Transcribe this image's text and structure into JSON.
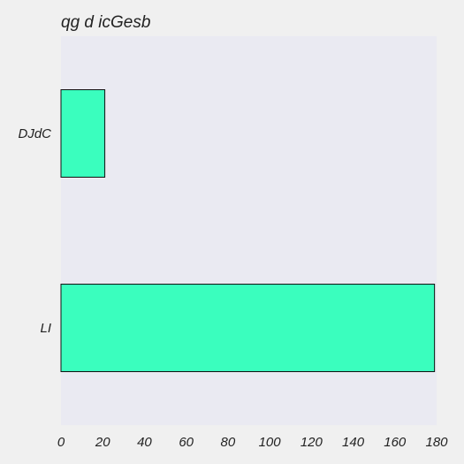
{
  "chart_data": {
    "type": "bar",
    "orientation": "horizontal",
    "title": "qg d icGesb",
    "xlabel": "",
    "ylabel": "",
    "categories": [
      "DJdC",
      "LI"
    ],
    "values": [
      21,
      179
    ],
    "xlim": [
      0,
      180
    ],
    "xticks": [
      0,
      20,
      40,
      60,
      80,
      100,
      120,
      140,
      160,
      180
    ],
    "grid": false,
    "legend": "none",
    "colors": {
      "bar_fill": "#3afebe",
      "bar_edge": "#111111",
      "plot_background": "#eaeaf2",
      "figure_background": "#f0f0f0"
    }
  }
}
